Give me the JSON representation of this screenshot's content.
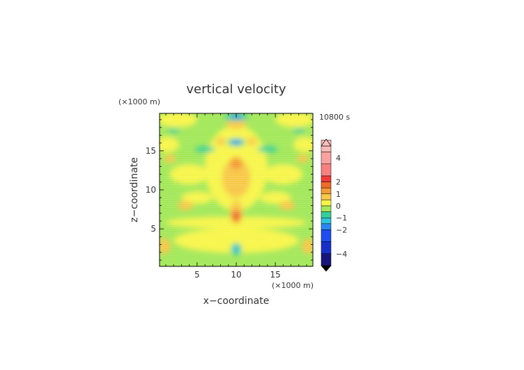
{
  "chart_data": {
    "type": "heatmap",
    "title": "vertical velocity",
    "time_label": "10800 s",
    "xlabel": "x−coordinate",
    "ylabel": "z−coordinate",
    "x_unit": "(×1000 m)",
    "y_unit": "(×1000 m)",
    "xlim": [
      0.2,
      19.8
    ],
    "ylim": [
      0.2,
      19.8
    ],
    "x_ticks": [
      5,
      10,
      15
    ],
    "y_ticks": [
      5,
      10,
      15
    ],
    "colorbar": {
      "tick_labels": [
        {
          "value": 4,
          "label": "4"
        },
        {
          "value": 2,
          "label": "2"
        },
        {
          "value": 1,
          "label": "1"
        },
        {
          "value": 0,
          "label": "0"
        },
        {
          "value": -1,
          "label": "−1"
        },
        {
          "value": -2,
          "label": "−2"
        },
        {
          "value": -4,
          "label": "−4"
        }
      ],
      "bands": [
        {
          "from": 4.5,
          "to": 5.5,
          "color": "#f9b9b9"
        },
        {
          "from": 3.5,
          "to": 4.5,
          "color": "#f9a0a0"
        },
        {
          "from": 2.5,
          "to": 3.5,
          "color": "#f78080"
        },
        {
          "from": 2.0,
          "to": 2.5,
          "color": "#f03b3b"
        },
        {
          "from": 1.5,
          "to": 2.0,
          "color": "#f06b2b"
        },
        {
          "from": 1.0,
          "to": 1.5,
          "color": "#f39a36"
        },
        {
          "from": 0.5,
          "to": 1.0,
          "color": "#f8c84a"
        },
        {
          "from": 0.0,
          "to": 0.5,
          "color": "#f7f54c"
        },
        {
          "from": -0.5,
          "to": 0.0,
          "color": "#a3e85a"
        },
        {
          "from": -1.0,
          "to": -0.5,
          "color": "#36d09a"
        },
        {
          "from": -1.5,
          "to": -1.0,
          "color": "#2fc2dc"
        },
        {
          "from": -2.0,
          "to": -1.5,
          "color": "#2a86f0"
        },
        {
          "from": -3.0,
          "to": -2.0,
          "color": "#1e4df0"
        },
        {
          "from": -4.0,
          "to": -3.0,
          "color": "#1830c8"
        },
        {
          "from": -5.0,
          "to": -4.0,
          "color": "#15157a"
        }
      ],
      "over_color": "#f9c0c0",
      "under_color": "#000000"
    }
  }
}
